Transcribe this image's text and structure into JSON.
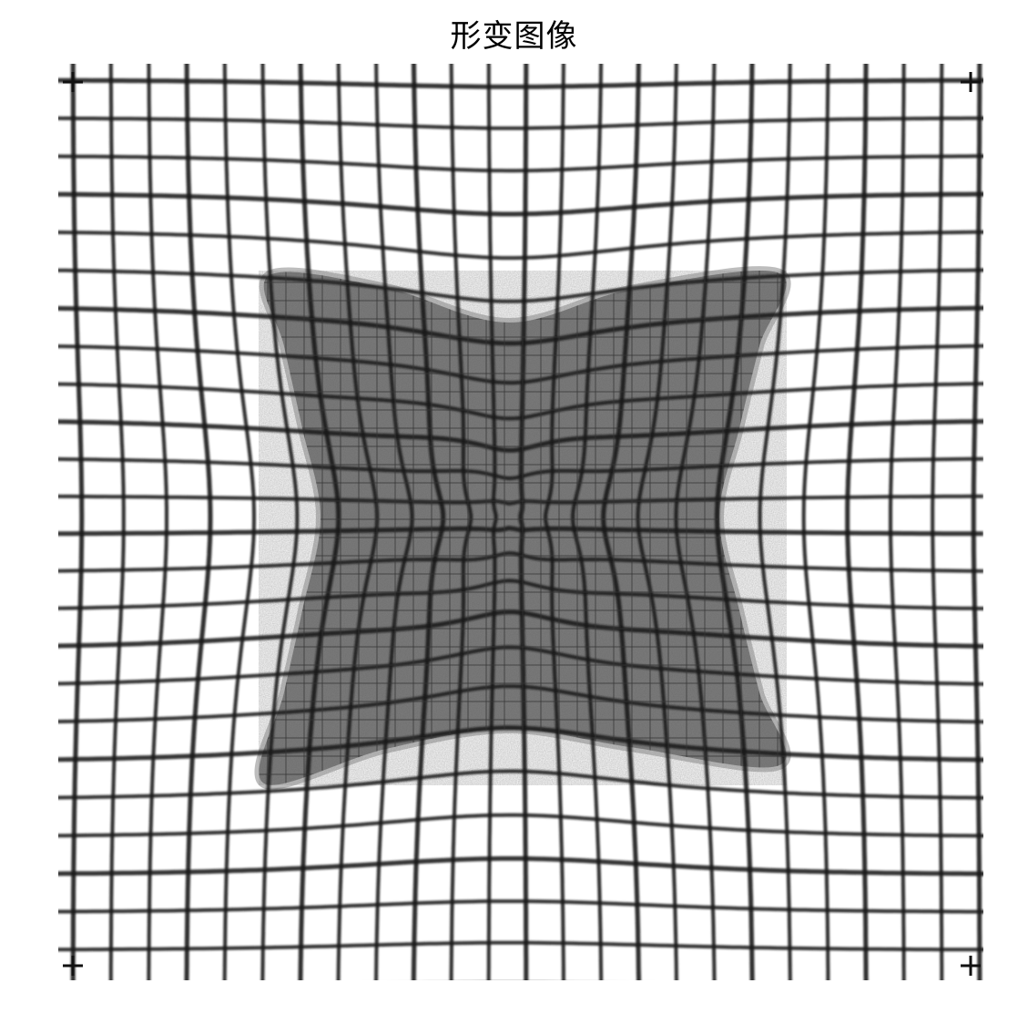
{
  "figure": {
    "title": "形变图像"
  }
}
